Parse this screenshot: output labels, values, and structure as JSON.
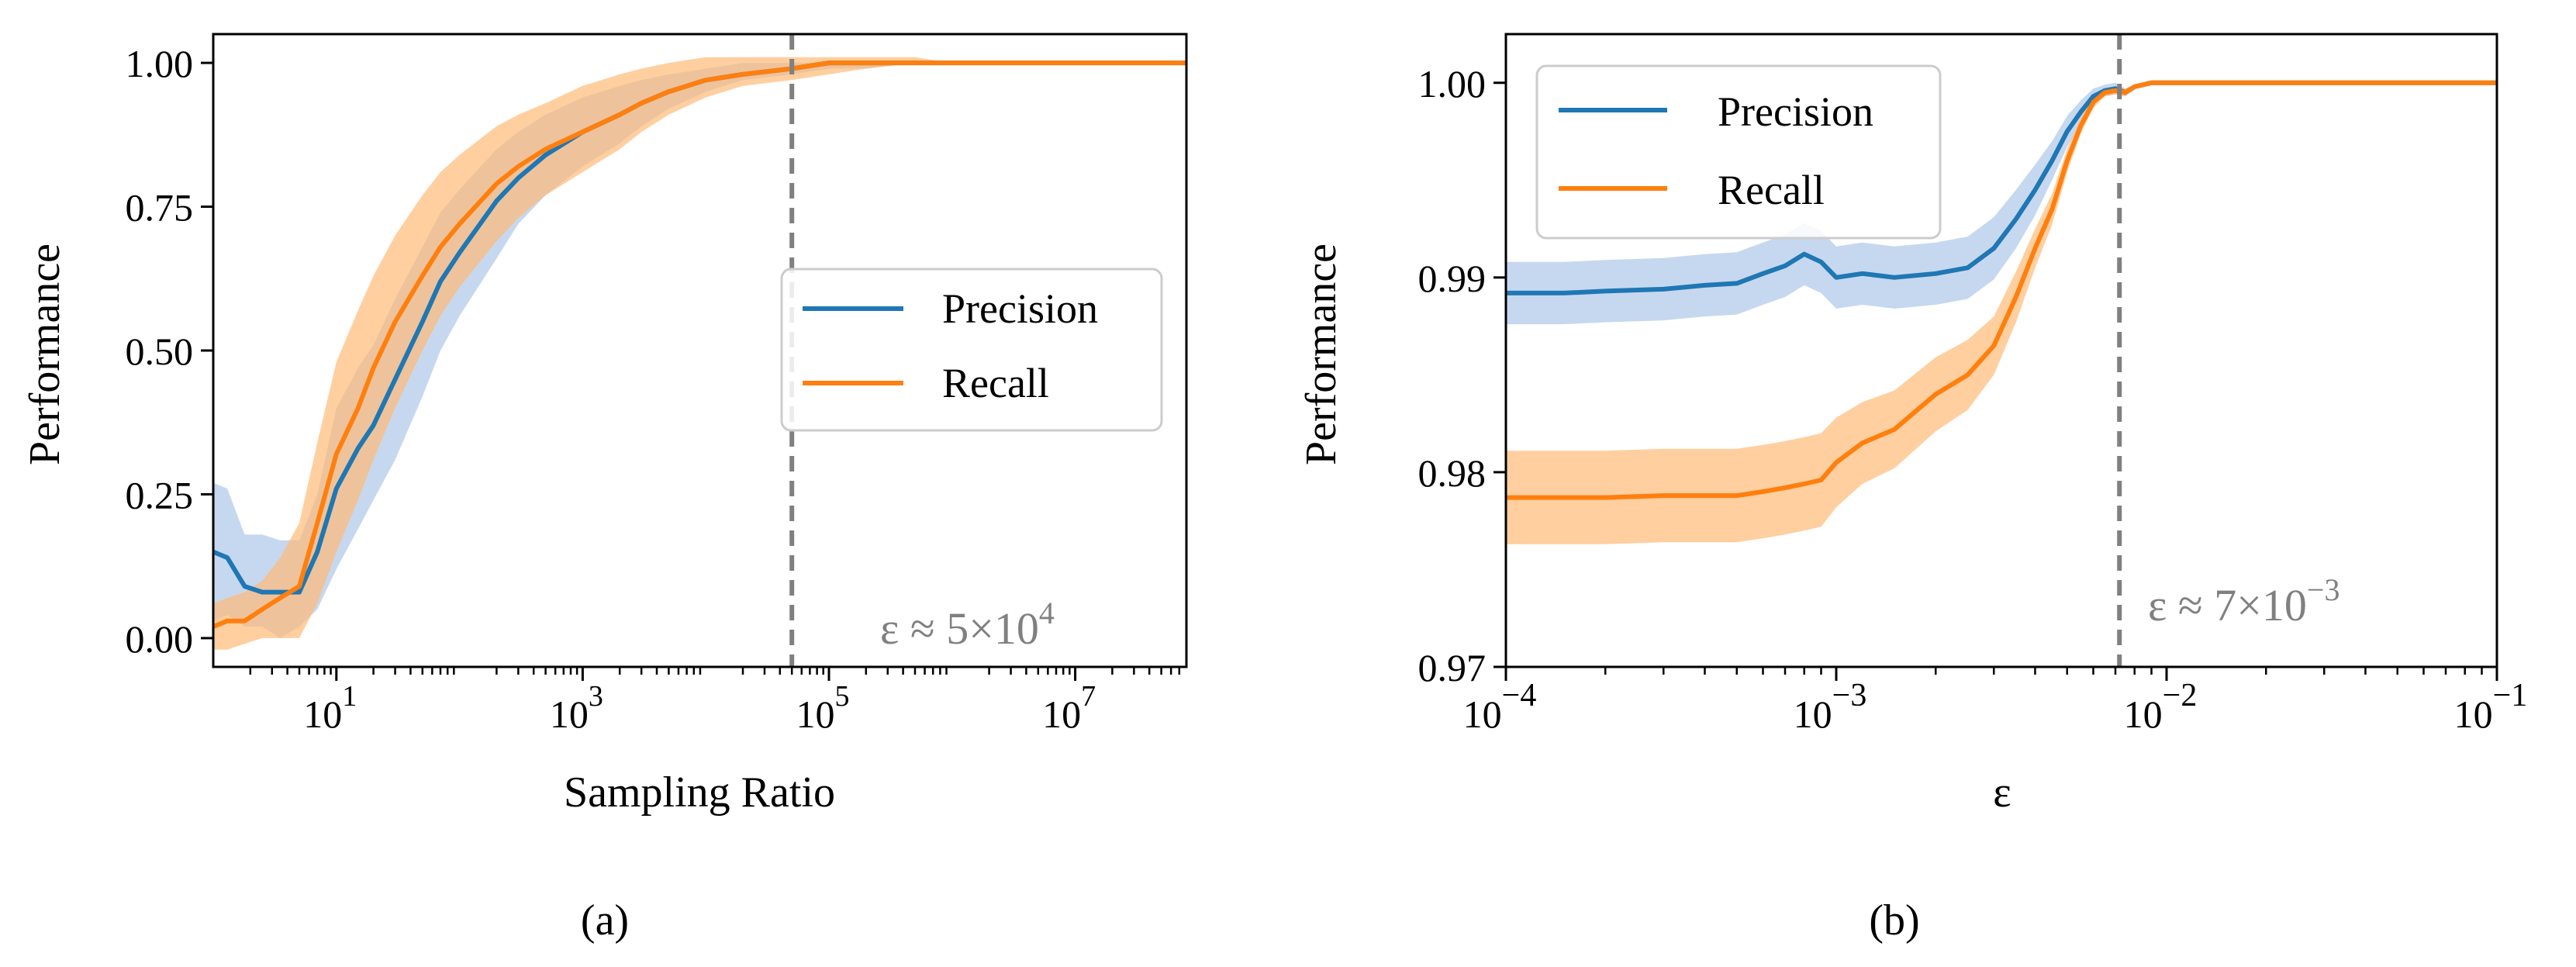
{
  "chart_data": [
    {
      "type": "line",
      "caption": "(a)",
      "xlabel": "Sampling Ratio",
      "ylabel": "Performance",
      "xscale": "log",
      "xlim": [
        1,
        80000000
      ],
      "ylim": [
        -0.05,
        1.05
      ],
      "xticks": [
        {
          "value": 10,
          "base": "10",
          "exp": "1"
        },
        {
          "value": 1000,
          "base": "10",
          "exp": "3"
        },
        {
          "value": 100000,
          "base": "10",
          "exp": "5"
        },
        {
          "value": 10000000,
          "base": "10",
          "exp": "7"
        }
      ],
      "yticks": [
        {
          "value": 0.0,
          "label": "0.00"
        },
        {
          "value": 0.25,
          "label": "0.25"
        },
        {
          "value": 0.5,
          "label": "0.50"
        },
        {
          "value": 0.75,
          "label": "0.75"
        },
        {
          "value": 1.0,
          "label": "1.00"
        }
      ],
      "legend": {
        "position": "center-right",
        "entries": [
          "Precision",
          "Recall"
        ]
      },
      "vline": 50000,
      "annotation": {
        "base": "ε ≈ 5×10",
        "exp": "4"
      },
      "series": [
        {
          "name": "Precision",
          "color": "#1f77b4",
          "band_color": "#aec7e8",
          "x": [
            1,
            1.3,
            1.8,
            2.5,
            3.5,
            5,
            7,
            10,
            15,
            20,
            30,
            50,
            70,
            100,
            200,
            300,
            500,
            1000,
            2000,
            3000,
            5000,
            10000,
            20000,
            50000,
            100000,
            200000,
            500000,
            1000000,
            80000000
          ],
          "y": [
            0.15,
            0.14,
            0.09,
            0.08,
            0.08,
            0.08,
            0.15,
            0.26,
            0.33,
            0.37,
            0.45,
            0.55,
            0.62,
            0.67,
            0.76,
            0.8,
            0.84,
            0.88,
            0.91,
            0.93,
            0.95,
            0.97,
            0.98,
            0.99,
            1.0,
            1.0,
            1.0,
            1.0,
            1.0
          ],
          "lower": [
            0.03,
            0.04,
            0.02,
            0.02,
            0.0,
            0.02,
            0.05,
            0.12,
            0.19,
            0.24,
            0.31,
            0.42,
            0.5,
            0.56,
            0.66,
            0.72,
            0.77,
            0.82,
            0.86,
            0.89,
            0.92,
            0.95,
            0.97,
            0.98,
            0.99,
            0.99,
            1.0,
            1.0,
            1.0
          ],
          "upper": [
            0.27,
            0.26,
            0.18,
            0.18,
            0.17,
            0.17,
            0.25,
            0.4,
            0.47,
            0.51,
            0.59,
            0.68,
            0.74,
            0.78,
            0.85,
            0.88,
            0.91,
            0.94,
            0.96,
            0.97,
            0.98,
            0.99,
            1.0,
            1.0,
            1.0,
            1.0,
            1.0,
            1.0,
            1.0
          ]
        },
        {
          "name": "Recall",
          "color": "#ff7f0e",
          "band_color": "#ffbb78",
          "x": [
            1,
            1.3,
            1.8,
            2.5,
            3.5,
            5,
            7,
            10,
            15,
            20,
            30,
            50,
            70,
            100,
            200,
            300,
            500,
            1000,
            2000,
            3000,
            5000,
            10000,
            20000,
            50000,
            100000,
            200000,
            500000,
            1000000,
            80000000
          ],
          "y": [
            0.02,
            0.03,
            0.03,
            0.05,
            0.07,
            0.09,
            0.2,
            0.32,
            0.4,
            0.47,
            0.55,
            0.63,
            0.68,
            0.72,
            0.79,
            0.82,
            0.85,
            0.88,
            0.91,
            0.93,
            0.95,
            0.97,
            0.98,
            0.99,
            1.0,
            1.0,
            1.0,
            1.0,
            1.0
          ],
          "lower": [
            -0.02,
            -0.02,
            -0.01,
            0.0,
            0.0,
            0.0,
            0.06,
            0.15,
            0.24,
            0.31,
            0.4,
            0.5,
            0.56,
            0.61,
            0.69,
            0.73,
            0.77,
            0.81,
            0.85,
            0.88,
            0.91,
            0.94,
            0.96,
            0.97,
            0.98,
            0.99,
            1.0,
            1.0,
            1.0
          ],
          "upper": [
            0.06,
            0.07,
            0.08,
            0.1,
            0.14,
            0.2,
            0.34,
            0.48,
            0.57,
            0.63,
            0.7,
            0.77,
            0.81,
            0.84,
            0.89,
            0.91,
            0.93,
            0.96,
            0.98,
            0.99,
            1.0,
            1.01,
            1.01,
            1.01,
            1.01,
            1.01,
            1.01,
            1.0,
            1.0
          ]
        }
      ]
    },
    {
      "type": "line",
      "caption": "(b)",
      "xlabel": "ε",
      "ylabel": "Performance",
      "xscale": "log",
      "xlim": [
        0.0001,
        0.1
      ],
      "ylim": [
        0.97,
        1.0025
      ],
      "xticks": [
        {
          "value": 0.0001,
          "base": "10",
          "exp": "−4"
        },
        {
          "value": 0.001,
          "base": "10",
          "exp": "−3"
        },
        {
          "value": 0.01,
          "base": "10",
          "exp": "−2"
        },
        {
          "value": 0.1,
          "base": "10",
          "exp": "−1"
        }
      ],
      "yticks": [
        {
          "value": 0.97,
          "label": "0.97"
        },
        {
          "value": 0.98,
          "label": "0.98"
        },
        {
          "value": 0.99,
          "label": "0.99"
        },
        {
          "value": 1.0,
          "label": "1.00"
        }
      ],
      "legend": {
        "position": "top-left",
        "entries": [
          "Precision",
          "Recall"
        ]
      },
      "vline": 0.0072,
      "annotation": {
        "base": "ε ≈ 7×10",
        "exp": "−3"
      },
      "series": [
        {
          "name": "Precision",
          "color": "#1f77b4",
          "band_color": "#aec7e8",
          "x": [
            0.0001,
            0.00015,
            0.0002,
            0.0003,
            0.0004,
            0.0005,
            0.0006,
            0.0007,
            0.0008,
            0.0009,
            0.001,
            0.0012,
            0.0015,
            0.002,
            0.0025,
            0.003,
            0.0035,
            0.004,
            0.0045,
            0.005,
            0.0055,
            0.006,
            0.0065,
            0.007,
            0.0075,
            0.008,
            0.009,
            0.01,
            0.02,
            0.05,
            0.1
          ],
          "y": [
            0.9892,
            0.9892,
            0.9893,
            0.9894,
            0.9896,
            0.9897,
            0.9902,
            0.9906,
            0.9912,
            0.9908,
            0.99,
            0.9902,
            0.99,
            0.9902,
            0.9905,
            0.9915,
            0.993,
            0.9945,
            0.996,
            0.9975,
            0.9985,
            0.9993,
            0.9996,
            0.9997,
            0.9995,
            0.9998,
            1.0,
            1.0,
            1.0,
            1.0,
            1.0
          ],
          "lower": [
            0.9876,
            0.9876,
            0.9877,
            0.9878,
            0.988,
            0.9881,
            0.9886,
            0.989,
            0.9896,
            0.9892,
            0.9884,
            0.9886,
            0.9884,
            0.9886,
            0.9889,
            0.9899,
            0.9915,
            0.9932,
            0.995,
            0.9967,
            0.9979,
            0.9989,
            0.9993,
            0.9994,
            0.9993,
            0.9997,
            1.0,
            1.0,
            1.0,
            1.0,
            1.0
          ],
          "upper": [
            0.9908,
            0.9908,
            0.9909,
            0.991,
            0.9912,
            0.9913,
            0.9918,
            0.9922,
            0.9928,
            0.9924,
            0.9916,
            0.9918,
            0.9916,
            0.9918,
            0.9921,
            0.9931,
            0.9945,
            0.9958,
            0.997,
            0.9983,
            0.9991,
            0.9997,
            0.9999,
            1.0,
            0.9997,
            0.9999,
            1.0,
            1.0,
            1.0,
            1.0,
            1.0
          ]
        },
        {
          "name": "Recall",
          "color": "#ff7f0e",
          "band_color": "#ffbb78",
          "x": [
            0.0001,
            0.00015,
            0.0002,
            0.0003,
            0.0004,
            0.0005,
            0.0006,
            0.0007,
            0.0008,
            0.0009,
            0.001,
            0.0012,
            0.0015,
            0.002,
            0.0025,
            0.003,
            0.0035,
            0.004,
            0.0045,
            0.005,
            0.0055,
            0.006,
            0.0065,
            0.007,
            0.0075,
            0.008,
            0.009,
            0.01,
            0.02,
            0.05,
            0.1
          ],
          "y": [
            0.9787,
            0.9787,
            0.9787,
            0.9788,
            0.9788,
            0.9788,
            0.979,
            0.9792,
            0.9794,
            0.9796,
            0.9805,
            0.9815,
            0.9822,
            0.984,
            0.985,
            0.9865,
            0.989,
            0.9915,
            0.9935,
            0.996,
            0.9978,
            0.999,
            0.9995,
            0.9996,
            0.9995,
            0.9998,
            1.0,
            1.0,
            1.0,
            1.0,
            1.0
          ],
          "lower": [
            0.9763,
            0.9763,
            0.9763,
            0.9764,
            0.9764,
            0.9764,
            0.9766,
            0.9768,
            0.977,
            0.9772,
            0.9782,
            0.9794,
            0.9802,
            0.9821,
            0.9832,
            0.985,
            0.9877,
            0.9905,
            0.9927,
            0.9954,
            0.9974,
            0.9987,
            0.9993,
            0.9994,
            0.9993,
            0.9997,
            1.0,
            1.0,
            1.0,
            1.0,
            1.0
          ],
          "upper": [
            0.9811,
            0.9811,
            0.9811,
            0.9812,
            0.9812,
            0.9812,
            0.9814,
            0.9816,
            0.9818,
            0.982,
            0.9828,
            0.9836,
            0.9842,
            0.9859,
            0.9868,
            0.988,
            0.9903,
            0.9925,
            0.9943,
            0.9966,
            0.9982,
            0.9993,
            0.9997,
            0.9998,
            0.9997,
            0.9999,
            1.0,
            1.0,
            1.0,
            1.0,
            1.0
          ]
        }
      ]
    }
  ]
}
